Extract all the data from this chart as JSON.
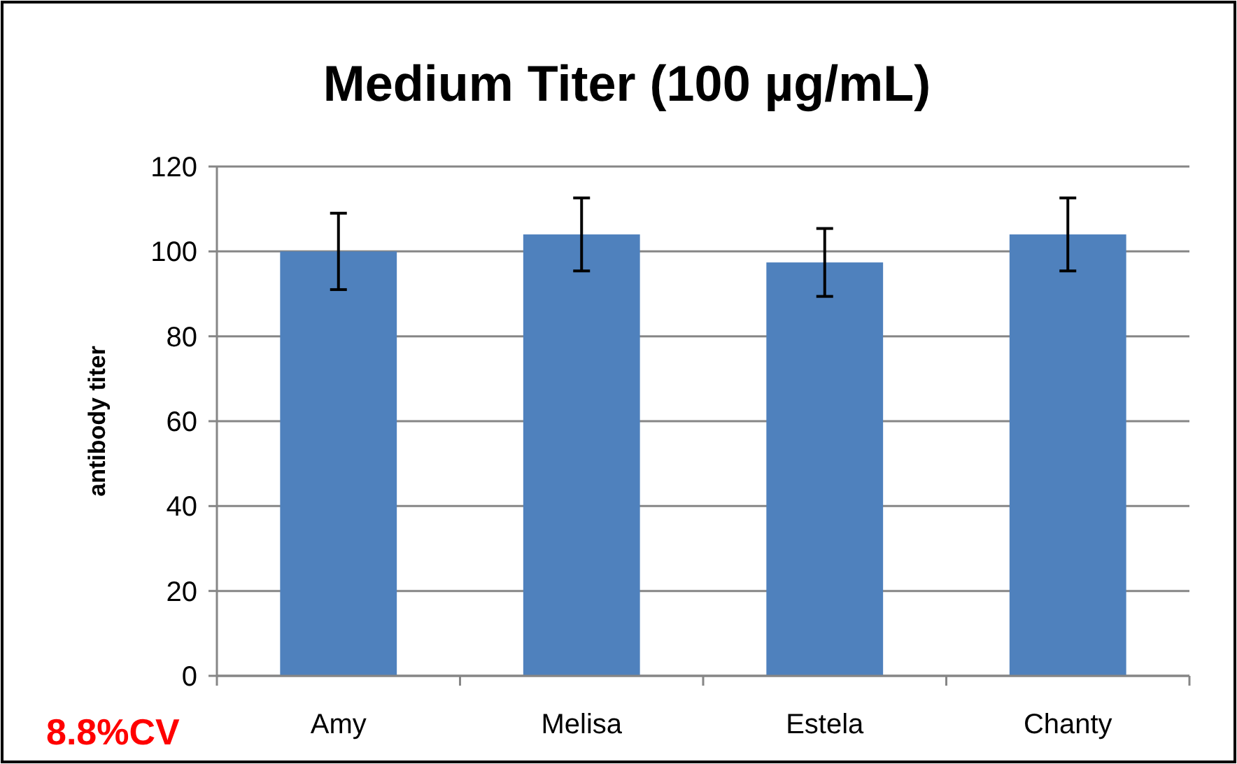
{
  "chart_data": {
    "type": "bar",
    "title": "Medium Titer (100 µg/mL)",
    "ylabel": "antibody titer",
    "categories": [
      "Amy",
      "Melisa",
      "Estela",
      "Chanty"
    ],
    "values": [
      100,
      104,
      97.4,
      104
    ],
    "errors": [
      9,
      8.6,
      8,
      8.6
    ],
    "color": "#4f81bd",
    "ylim": [
      0,
      120
    ],
    "yticks": [
      0,
      20,
      40,
      60,
      80,
      100,
      120
    ],
    "grid": "y",
    "annotations": [
      "8.8%CV"
    ]
  }
}
